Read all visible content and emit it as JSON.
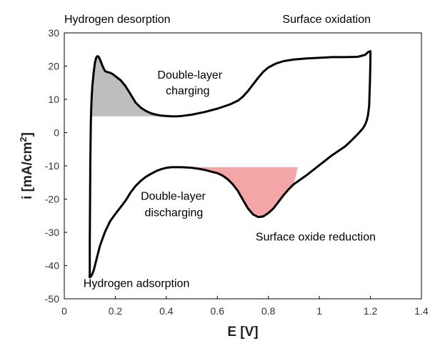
{
  "chart_data": {
    "type": "line",
    "title": "",
    "xlabel": "E [V]",
    "ylabel_main": "i [mA/cm",
    "ylabel_sup": "2",
    "ylabel_close": "]",
    "xlim": [
      0,
      1.4
    ],
    "ylim": [
      -50,
      30
    ],
    "x_ticks": [
      "0",
      "0.2",
      "0.4",
      "0.6",
      "0.8",
      "1",
      "1.2",
      "1.4"
    ],
    "y_ticks": [
      "30",
      "20",
      "10",
      "0",
      "-10",
      "-20",
      "-30",
      "-40",
      "-50"
    ],
    "grid": false,
    "legend": "none",
    "series": [
      {
        "curve_color": "#000000",
        "x": [
          0.1,
          0.101,
          0.102,
          0.103,
          0.104,
          0.105,
          0.107,
          0.11,
          0.115,
          0.12,
          0.125,
          0.13,
          0.135,
          0.14,
          0.15,
          0.16,
          0.17,
          0.18,
          0.19,
          0.2,
          0.22,
          0.24,
          0.26,
          0.28,
          0.3,
          0.32,
          0.34,
          0.36,
          0.38,
          0.4,
          0.42,
          0.44,
          0.46,
          0.48,
          0.5,
          0.55,
          0.6,
          0.65,
          0.68,
          0.7,
          0.72,
          0.74,
          0.76,
          0.78,
          0.8,
          0.83,
          0.86,
          0.9,
          0.95,
          1.0,
          1.05,
          1.1,
          1.15,
          1.18,
          1.19,
          1.2,
          1.2,
          1.198,
          1.195,
          1.19,
          1.185,
          1.18,
          1.17,
          1.15,
          1.12,
          1.1,
          1.05,
          1.0,
          0.95,
          0.9,
          0.88,
          0.86,
          0.84,
          0.82,
          0.8,
          0.78,
          0.76,
          0.74,
          0.72,
          0.7,
          0.68,
          0.66,
          0.64,
          0.62,
          0.6,
          0.58,
          0.55,
          0.52,
          0.5,
          0.48,
          0.46,
          0.44,
          0.42,
          0.4,
          0.38,
          0.36,
          0.34,
          0.32,
          0.3,
          0.28,
          0.26,
          0.24,
          0.22,
          0.2,
          0.18,
          0.16,
          0.14,
          0.13,
          0.12,
          0.115,
          0.11,
          0.105,
          0.1,
          0.099,
          0.1,
          0.1
        ],
        "y": [
          -33,
          -20,
          -10,
          -3,
          2,
          6,
          10,
          14,
          18,
          21,
          22.5,
          23,
          22.8,
          22,
          20,
          18.5,
          18.2,
          18,
          17.6,
          17,
          15.8,
          14,
          11.5,
          9,
          7.5,
          6.5,
          5.8,
          5.4,
          5.1,
          5.0,
          4.9,
          4.9,
          5.0,
          5.2,
          5.4,
          6.2,
          7.2,
          8.5,
          9.6,
          10.8,
          12.5,
          14.5,
          16.5,
          18.3,
          19.6,
          20.8,
          21.5,
          22.0,
          22.3,
          22.5,
          22.7,
          22.7,
          22.8,
          23.4,
          24.2,
          24.5,
          22,
          15,
          8,
          5,
          3.5,
          2.5,
          1.2,
          -0.5,
          -2.8,
          -4.2,
          -6.8,
          -9.8,
          -12.8,
          -15.5,
          -17.0,
          -18.8,
          -20.8,
          -22.8,
          -24.2,
          -25.2,
          -25.4,
          -24.6,
          -22.8,
          -20.2,
          -17.5,
          -15.5,
          -14.0,
          -12.9,
          -12.2,
          -11.8,
          -11.2,
          -10.8,
          -10.6,
          -10.5,
          -10.4,
          -10.4,
          -10.4,
          -10.6,
          -11.0,
          -11.6,
          -12.4,
          -13.3,
          -14.5,
          -16.0,
          -18.0,
          -20.5,
          -22.5,
          -24.5,
          -26.6,
          -29.8,
          -34,
          -37,
          -40,
          -41.5,
          -42.5,
          -43.2,
          -43.5,
          -43.4,
          -42.5,
          -33
        ]
      }
    ],
    "fills": [
      {
        "name": "Hydrogen desorption region",
        "color": "#bebebe",
        "x": [
          0.1,
          0.105,
          0.107,
          0.11,
          0.115,
          0.12,
          0.125,
          0.13,
          0.135,
          0.14,
          0.15,
          0.16,
          0.17,
          0.18,
          0.19,
          0.2,
          0.22,
          0.24,
          0.26,
          0.28,
          0.3,
          0.32,
          0.34,
          0.36,
          0.38,
          0.4,
          0.42,
          0.44,
          0.44
        ],
        "y": [
          4.9,
          6,
          10,
          14,
          18,
          21,
          22.5,
          23,
          22.8,
          22,
          20,
          18.5,
          18.2,
          18,
          17.6,
          17,
          15.8,
          14,
          11.5,
          9,
          7.5,
          6.5,
          5.8,
          5.4,
          5.1,
          5.0,
          4.9,
          4.9,
          4.9
        ]
      },
      {
        "name": "Surface oxide reduction region",
        "color": "#f4a6a6",
        "x": [
          0.46,
          0.48,
          0.5,
          0.52,
          0.55,
          0.58,
          0.6,
          0.62,
          0.64,
          0.66,
          0.68,
          0.7,
          0.72,
          0.74,
          0.76,
          0.78,
          0.8,
          0.82,
          0.84,
          0.86,
          0.88,
          0.9,
          0.915,
          0.915
        ],
        "y": [
          -10.4,
          -10.5,
          -10.6,
          -10.8,
          -11.2,
          -11.8,
          -12.2,
          -12.9,
          -14.0,
          -15.5,
          -17.5,
          -20.2,
          -22.8,
          -24.6,
          -25.4,
          -25.2,
          -24.2,
          -22.8,
          -20.8,
          -18.8,
          -17.0,
          -15.5,
          -10.4,
          -10.4
        ]
      }
    ],
    "annotations": [
      {
        "text": "Hydrogen desorption",
        "x": 0.0,
        "y": 33
      },
      {
        "text": "Surface oxidation",
        "x": 0.855,
        "y": 33
      },
      {
        "text": "Double-layer",
        "x": 0.365,
        "y": 16.2
      },
      {
        "text": "charging",
        "x": 0.398,
        "y": 11.5
      },
      {
        "text": "Double-layer",
        "x": 0.3,
        "y": -20.2
      },
      {
        "text": "discharging",
        "x": 0.315,
        "y": -25.2
      },
      {
        "text": "Surface oxide reduction",
        "x": 0.75,
        "y": -32.5
      },
      {
        "text": "Hydrogen adsorption",
        "x": 0.075,
        "y": -46.5
      }
    ]
  }
}
